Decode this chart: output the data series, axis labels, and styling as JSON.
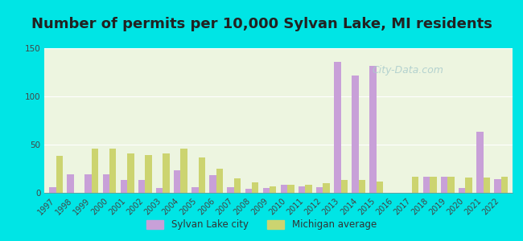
{
  "title": "Number of permits per 10,000 Sylvan Lake, MI residents",
  "years": [
    1997,
    1998,
    1999,
    2000,
    2001,
    2002,
    2003,
    2004,
    2005,
    2006,
    2007,
    2008,
    2009,
    2010,
    2011,
    2012,
    2013,
    2014,
    2015,
    2016,
    2017,
    2018,
    2019,
    2020,
    2021,
    2022
  ],
  "sylvan_lake": [
    6,
    19,
    19,
    19,
    13,
    13,
    5,
    23,
    6,
    18,
    6,
    4,
    5,
    8,
    7,
    6,
    136,
    122,
    132,
    0,
    0,
    17,
    17,
    5,
    63,
    14
  ],
  "michigan_avg": [
    38,
    0,
    46,
    46,
    41,
    39,
    41,
    46,
    37,
    25,
    15,
    11,
    7,
    8,
    8,
    10,
    13,
    13,
    12,
    0,
    17,
    17,
    17,
    16,
    16,
    17
  ],
  "sylvan_color": "#c8a0d8",
  "michigan_color": "#ccd470",
  "bg_color": "#00e5e5",
  "plot_bg": "#edf5e0",
  "ylim": [
    0,
    150
  ],
  "yticks": [
    0,
    50,
    100,
    150
  ],
  "bar_width": 0.38,
  "legend_sylvan": "Sylvan Lake city",
  "legend_michigan": "Michigan average",
  "title_fontsize": 13,
  "tick_fontsize": 7,
  "watermark": "City-Data.com"
}
